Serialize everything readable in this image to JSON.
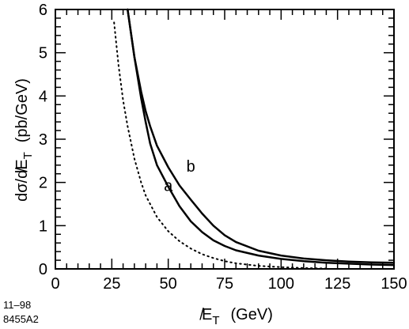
{
  "chart_data": {
    "type": "line",
    "xlabel": "̸E",
    "xlabel_sub": "T",
    "xlabel_unit": "(GeV)",
    "ylabel": "dσ/d̸E",
    "ylabel_sub": "T",
    "ylabel_unit": "(pb/GeV)",
    "xlim": [
      0,
      150
    ],
    "ylim": [
      0,
      6
    ],
    "x_ticks": [
      "0",
      "25",
      "50",
      "75",
      "100",
      "125",
      "150"
    ],
    "y_ticks": [
      "0",
      "1",
      "2",
      "3",
      "4",
      "5",
      "6"
    ],
    "grid": false,
    "series": [
      {
        "name": "a",
        "style": "solid",
        "x": [
          32,
          35,
          38,
          40,
          42,
          45,
          50,
          55,
          60,
          65,
          70,
          75,
          80,
          90,
          100,
          110,
          120,
          130,
          140,
          150
        ],
        "y": [
          6.0,
          4.9,
          3.95,
          3.4,
          2.9,
          2.4,
          1.9,
          1.45,
          1.1,
          0.85,
          0.66,
          0.53,
          0.43,
          0.31,
          0.23,
          0.18,
          0.14,
          0.12,
          0.1,
          0.09
        ]
      },
      {
        "name": "b",
        "style": "solid",
        "x": [
          32,
          35,
          38,
          40,
          42,
          45,
          50,
          55,
          60,
          65,
          70,
          75,
          80,
          90,
          100,
          110,
          120,
          130,
          140,
          150
        ],
        "y": [
          6.0,
          4.9,
          4.1,
          3.65,
          3.3,
          2.85,
          2.35,
          1.93,
          1.6,
          1.28,
          1.0,
          0.78,
          0.62,
          0.42,
          0.31,
          0.24,
          0.2,
          0.17,
          0.15,
          0.14
        ]
      },
      {
        "name": "",
        "style": "dotted",
        "x": [
          26,
          28,
          30,
          32,
          35,
          38,
          40,
          45,
          50,
          55,
          60,
          65,
          70,
          75,
          80,
          90,
          100,
          110,
          120
        ],
        "y": [
          5.7,
          4.7,
          3.9,
          3.3,
          2.55,
          2.0,
          1.7,
          1.2,
          0.87,
          0.64,
          0.47,
          0.34,
          0.25,
          0.18,
          0.13,
          0.07,
          0.04,
          0.02,
          0.01
        ]
      }
    ],
    "annotations": [
      {
        "text": "a",
        "x": 50,
        "y": 1.8
      },
      {
        "text": "b",
        "x": 60,
        "y": 2.25
      }
    ]
  },
  "side_note": {
    "line1": "11–98",
    "line2": "8455A2"
  },
  "style": {
    "line_color": "#000000"
  }
}
